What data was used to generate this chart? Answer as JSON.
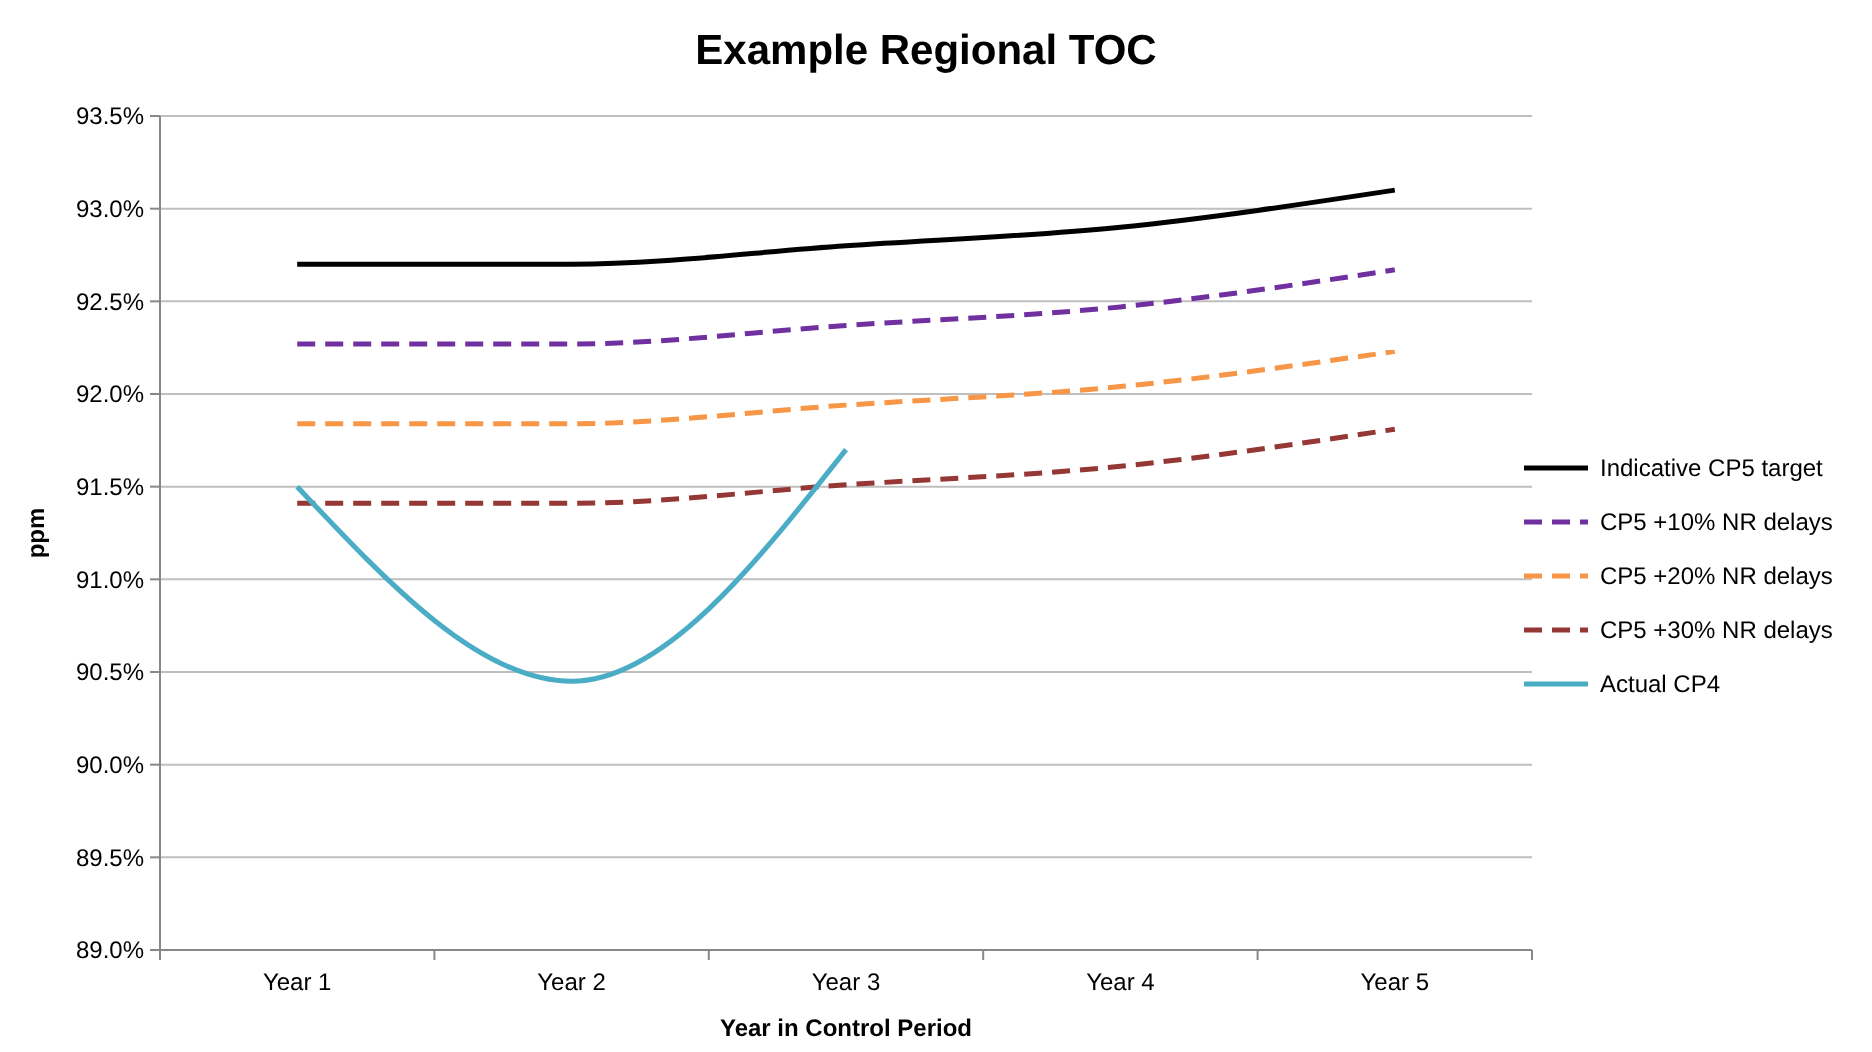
{
  "chart_data": {
    "type": "line",
    "title": "Example Regional TOC",
    "xlabel": "Year in Control Period",
    "ylabel": "ppm",
    "categories": [
      "Year 1",
      "Year 2",
      "Year 3",
      "Year 4",
      "Year 5"
    ],
    "series": [
      {
        "name": "Indicative CP5 target",
        "color": "#000000",
        "line_style": "solid",
        "values": [
          92.7,
          92.7,
          92.8,
          92.9,
          93.1
        ]
      },
      {
        "name": "CP5 +10% NR delays",
        "color": "#7030a0",
        "line_style": "dashed",
        "values": [
          92.27,
          92.27,
          92.37,
          92.47,
          92.67
        ]
      },
      {
        "name": "CP5 +20% NR delays",
        "color": "#f79646",
        "line_style": "dashed",
        "values": [
          91.84,
          91.84,
          91.94,
          92.04,
          92.23
        ]
      },
      {
        "name": "CP5 +30% NR delays",
        "color": "#953735",
        "line_style": "dashed",
        "values": [
          91.41,
          91.41,
          91.51,
          91.61,
          91.81
        ]
      },
      {
        "name": "Actual CP4",
        "color": "#4bacc6",
        "line_style": "solid",
        "values": [
          91.5,
          90.45,
          91.7,
          null,
          null
        ]
      }
    ],
    "ylim": [
      89.0,
      93.5
    ],
    "yticks": [
      {
        "value": 89.0,
        "label": "89.0%"
      },
      {
        "value": 89.5,
        "label": "89.5%"
      },
      {
        "value": 90.0,
        "label": "90.0%"
      },
      {
        "value": 90.5,
        "label": "90.5%"
      },
      {
        "value": 91.0,
        "label": "91.0%"
      },
      {
        "value": 91.5,
        "label": "91.5%"
      },
      {
        "value": 92.0,
        "label": "92.0%"
      },
      {
        "value": 92.5,
        "label": "92.5%"
      },
      {
        "value": 93.0,
        "label": "93.0%"
      },
      {
        "value": 93.5,
        "label": "93.5%"
      }
    ],
    "grid": "y",
    "legend": "right",
    "marker": "none"
  }
}
